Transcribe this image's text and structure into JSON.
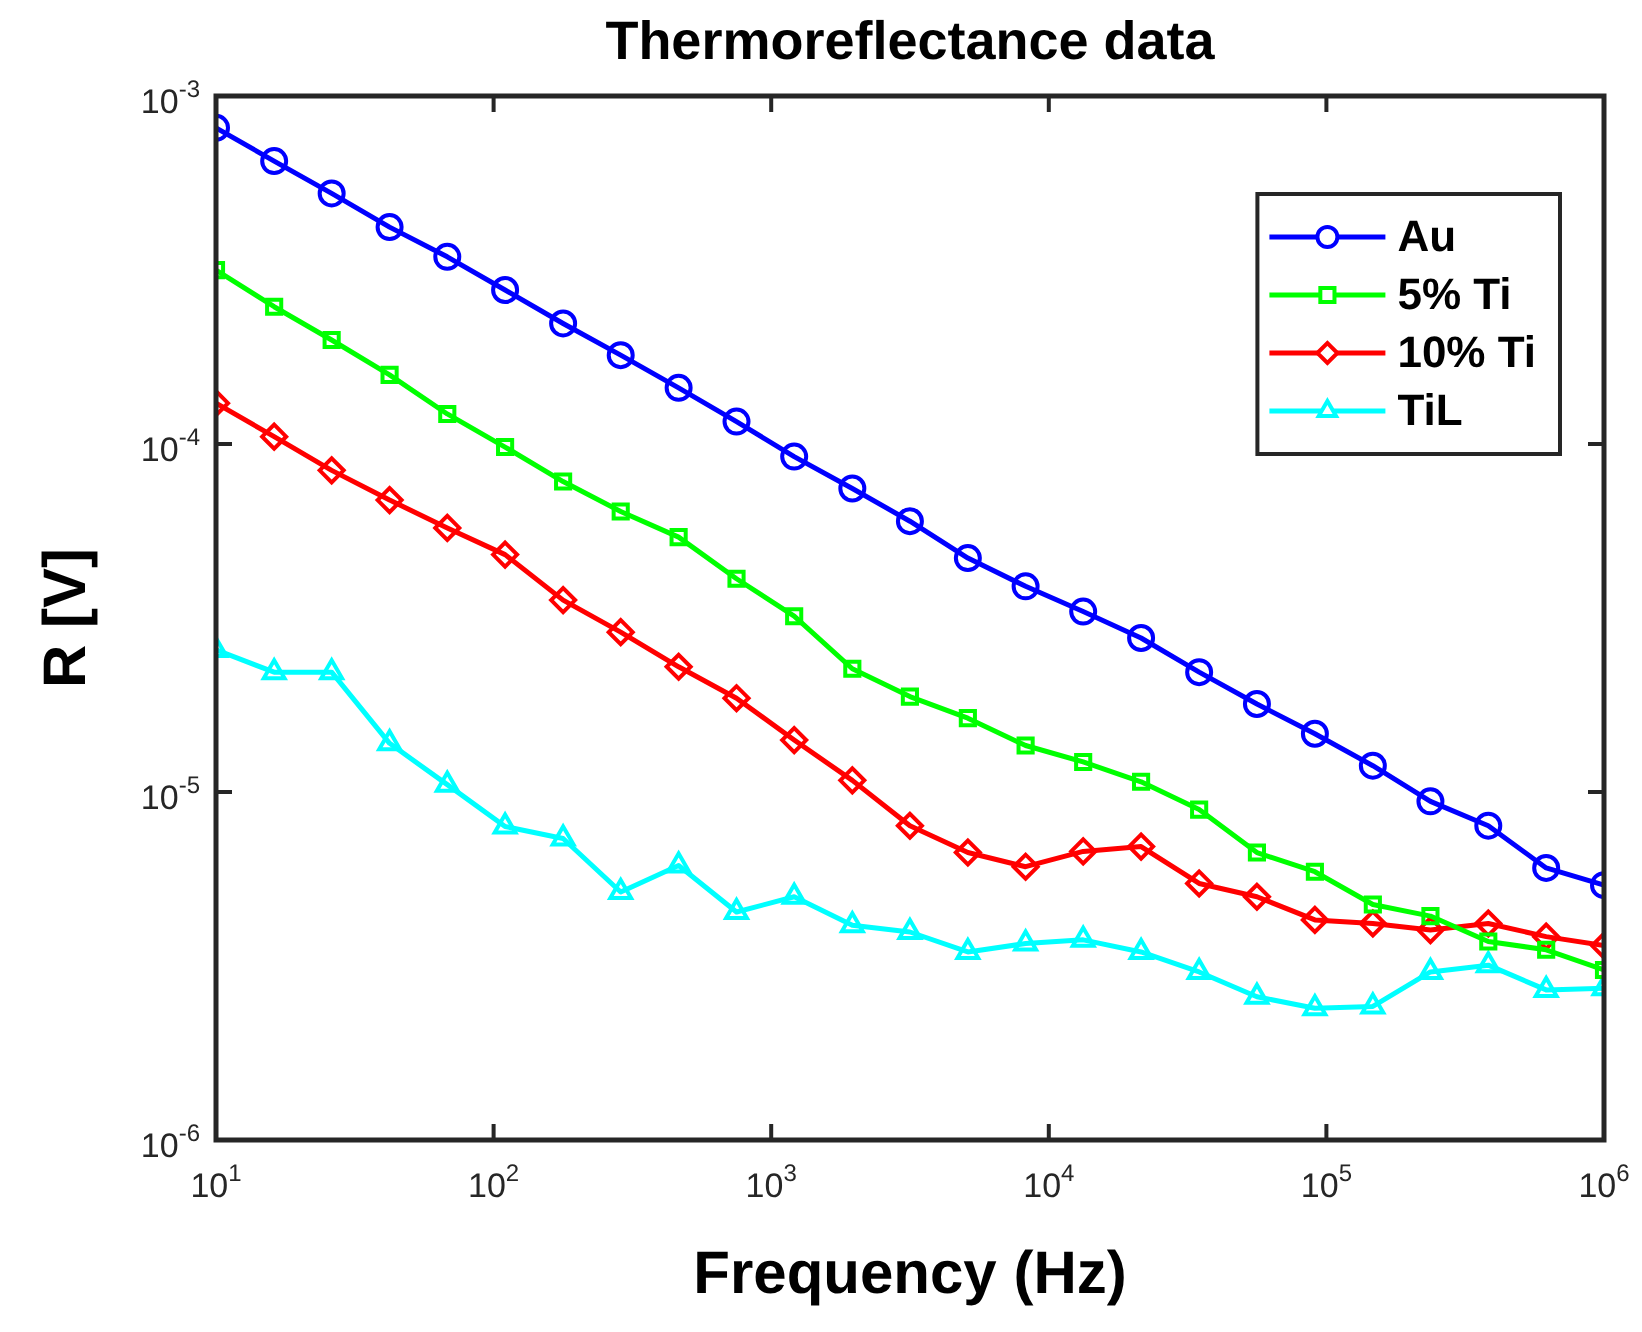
{
  "chart_data": {
    "type": "line",
    "title": "Thermoreflectance data",
    "xlabel": "Frequency (Hz)",
    "ylabel": "R [V]",
    "x": [
      10,
      16.2,
      26.1,
      42.2,
      68.1,
      110,
      178,
      287,
      464,
      750,
      1210,
      1960,
      3160,
      5110,
      8250,
      13300,
      21500,
      34800,
      56200,
      90900,
      147000,
      237000,
      383000,
      619000,
      1000000
    ],
    "series": [
      {
        "name": "Au",
        "color": "#0000ff",
        "marker": "circle",
        "values": [
          0.00081,
          0.00065,
          0.000525,
          0.00042,
          0.000345,
          0.000277,
          0.000222,
          0.00018,
          0.000145,
          0.000116,
          9.2e-05,
          7.45e-05,
          6e-05,
          4.7e-05,
          3.9e-05,
          3.3e-05,
          2.77e-05,
          2.21e-05,
          1.79e-05,
          1.47e-05,
          1.19e-05,
          9.4e-06,
          8e-06,
          6.05e-06,
          5.4e-06
        ]
      },
      {
        "name": "5% Ti",
        "color": "#00ff00",
        "marker": "square",
        "values": [
          0.000316,
          0.000248,
          0.000199,
          0.000158,
          0.000122,
          9.8e-05,
          7.8e-05,
          6.4e-05,
          5.4e-05,
          4.1e-05,
          3.2e-05,
          2.26e-05,
          1.88e-05,
          1.63e-05,
          1.36e-05,
          1.22e-05,
          1.07e-05,
          8.9e-06,
          6.7e-06,
          5.9e-06,
          4.75e-06,
          4.4e-06,
          3.72e-06,
          3.52e-06,
          3.08e-06
        ]
      },
      {
        "name": "10% Ti",
        "color": "#ff0000",
        "marker": "diamond",
        "values": [
          0.000131,
          0.000105,
          8.4e-05,
          6.9e-05,
          5.74e-05,
          4.81e-05,
          3.56e-05,
          2.88e-05,
          2.29e-05,
          1.86e-05,
          1.41e-05,
          1.08e-05,
          8e-06,
          6.7e-06,
          6.1e-06,
          6.75e-06,
          6.97e-06,
          5.46e-06,
          5e-06,
          4.29e-06,
          4.19e-06,
          4.01e-06,
          4.19e-06,
          3.84e-06,
          3.62e-06
        ]
      },
      {
        "name": "TiL",
        "color": "#00ffff",
        "marker": "triangle",
        "values": [
          2.56e-05,
          2.21e-05,
          2.21e-05,
          1.38e-05,
          1.05e-05,
          7.96e-06,
          7.35e-06,
          5.16e-06,
          6.15e-06,
          4.52e-06,
          5e-06,
          4.14e-06,
          3.96e-06,
          3.47e-06,
          3.67e-06,
          3.76e-06,
          3.47e-06,
          3.04e-06,
          2.58e-06,
          2.39e-06,
          2.42e-06,
          3.04e-06,
          3.18e-06,
          2.7e-06,
          2.73e-06
        ]
      }
    ],
    "log": "xy",
    "xlim": [
      10,
      1000000
    ],
    "ylim": [
      1e-06,
      0.001
    ],
    "xticks": [
      {
        "value": 10,
        "label": "10$^{1}$"
      },
      {
        "value": 100,
        "label": "10$^{2}$"
      },
      {
        "value": 1000,
        "label": "10$^{3}$"
      },
      {
        "value": 10000,
        "label": "10$^{4}$"
      },
      {
        "value": 100000,
        "label": "10$^{5}$"
      },
      {
        "value": 1000000,
        "label": "10$^{6}$"
      }
    ],
    "yticks": [
      {
        "value": 1e-06,
        "label": "10$^{-6}$"
      },
      {
        "value": 1e-05,
        "label": "10$^{-5}$"
      },
      {
        "value": 0.0001,
        "label": "10$^{-4}$"
      },
      {
        "value": 0.001,
        "label": "10$^{-3}$"
      }
    ],
    "grid": false,
    "legend": "top right",
    "line_style": "solid"
  }
}
